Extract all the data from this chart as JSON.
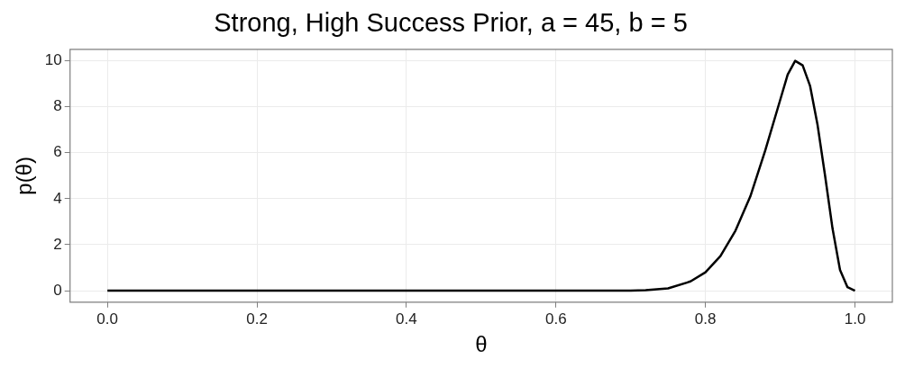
{
  "chart_data": {
    "type": "line",
    "title": "Strong, High Success Prior, a = 45, b = 5",
    "xlabel": "θ",
    "ylabel": "p(θ)",
    "x": [
      0,
      0.1,
      0.2,
      0.3,
      0.4,
      0.5,
      0.6,
      0.65,
      0.7,
      0.72,
      0.75,
      0.78,
      0.8,
      0.82,
      0.84,
      0.86,
      0.88,
      0.9,
      0.91,
      0.92,
      0.93,
      0.94,
      0.95,
      0.96,
      0.97,
      0.98,
      0.99,
      1.0
    ],
    "series": [
      {
        "color": "#000000",
        "values": [
          0,
          0,
          0,
          0,
          0,
          0,
          0,
          0,
          0,
          0.02,
          0.1,
          0.4,
          0.8,
          1.5,
          2.6,
          4.1,
          6.1,
          8.3,
          9.4,
          10,
          9.8,
          8.9,
          7.2,
          5.0,
          2.7,
          0.9,
          0.15,
          0
        ]
      }
    ],
    "xlim": [
      -0.05,
      1.05
    ],
    "xticks": [
      {
        "value": 0,
        "label": "0.0"
      },
      0.2,
      0.4,
      0.6,
      0.8,
      {
        "value": 1,
        "label": "1.0"
      }
    ],
    "ylim": [
      -0.5,
      10.5
    ],
    "yticks": [
      0,
      2,
      4,
      6,
      8,
      10
    ],
    "grid": true,
    "legend": false,
    "marker": "none",
    "line_style": "solid"
  }
}
